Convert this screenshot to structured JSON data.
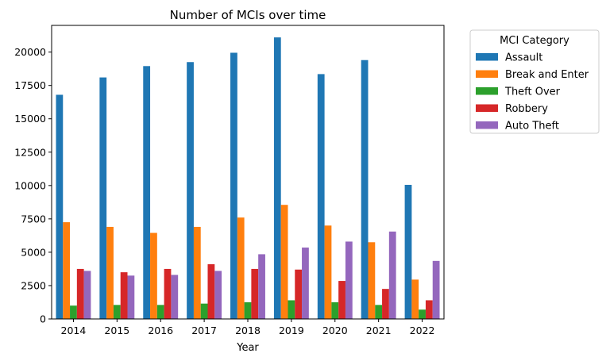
{
  "chart_data": {
    "type": "bar",
    "title": "Number of MCIs over time",
    "xlabel": "Year",
    "ylabel": "",
    "categories": [
      "2014",
      "2015",
      "2016",
      "2017",
      "2018",
      "2019",
      "2020",
      "2021",
      "2022"
    ],
    "ylim": [
      0,
      22000
    ],
    "yticks": [
      0,
      2500,
      5000,
      7500,
      10000,
      12500,
      15000,
      17500,
      20000
    ],
    "grid": false,
    "legend": {
      "title": "MCI Category",
      "placement": "outside-right-top"
    },
    "series": [
      {
        "name": "Assault",
        "color": "#1f77b4",
        "values": [
          16800,
          18100,
          18950,
          19250,
          19950,
          21100,
          18350,
          19400,
          10050
        ]
      },
      {
        "name": "Break and Enter",
        "color": "#ff7f0e",
        "values": [
          7250,
          6900,
          6450,
          6900,
          7600,
          8550,
          7000,
          5750,
          2950
        ]
      },
      {
        "name": "Theft Over",
        "color": "#2ca02c",
        "values": [
          1000,
          1050,
          1050,
          1150,
          1250,
          1400,
          1250,
          1050,
          700
        ]
      },
      {
        "name": "Robbery",
        "color": "#d62728",
        "values": [
          3750,
          3500,
          3750,
          4100,
          3750,
          3700,
          2850,
          2250,
          1400
        ]
      },
      {
        "name": "Auto Theft",
        "color": "#9467bd",
        "values": [
          3600,
          3250,
          3300,
          3600,
          4850,
          5350,
          5800,
          6550,
          4350
        ]
      }
    ]
  }
}
